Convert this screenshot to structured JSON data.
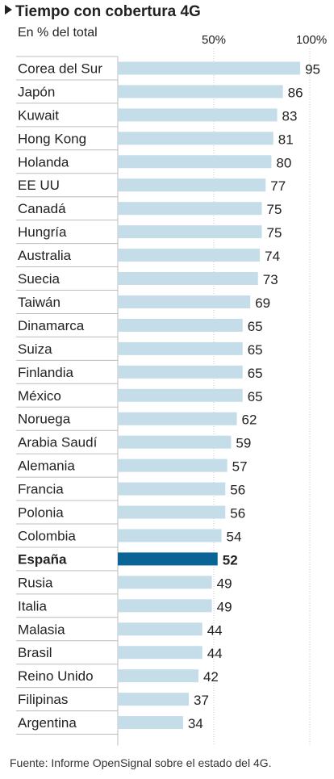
{
  "title": "Tiempo con cobertura 4G",
  "subtitle": "En % del total",
  "footer": "Fuente: Informe OpenSignal sobre el estado del 4G.",
  "colors": {
    "bar": "#c5dde9",
    "highlight_bar": "#0a6496",
    "separator": "#bcbcbc",
    "gridline": "#c8c8c8"
  },
  "chart_data": {
    "type": "bar",
    "orientation": "horizontal",
    "title": "Tiempo con cobertura 4G",
    "subtitle": "En % del total",
    "xlim": [
      0,
      100
    ],
    "ticks": [
      50,
      100
    ],
    "tick_labels": [
      "50%",
      "100%"
    ],
    "highlight": "España",
    "categories": [
      "Corea del Sur",
      "Japón",
      "Kuwait",
      "Hong Kong",
      "Holanda",
      "EE UU",
      "Canadá",
      "Hungría",
      "Australia",
      "Suecia",
      "Taiwán",
      "Dinamarca",
      "Suiza",
      "Finlandia",
      "México",
      "Noruega",
      "Arabia Saudí",
      "Alemania",
      "Francia",
      "Polonia",
      "Colombia",
      "España",
      "Rusia",
      "Italia",
      "Malasia",
      "Brasil",
      "Reino Unido",
      "Filipinas",
      "Argentina"
    ],
    "values": [
      95,
      86,
      83,
      81,
      80,
      77,
      75,
      75,
      74,
      73,
      69,
      65,
      65,
      65,
      65,
      62,
      59,
      57,
      56,
      56,
      54,
      52,
      49,
      49,
      44,
      44,
      42,
      37,
      34
    ]
  }
}
